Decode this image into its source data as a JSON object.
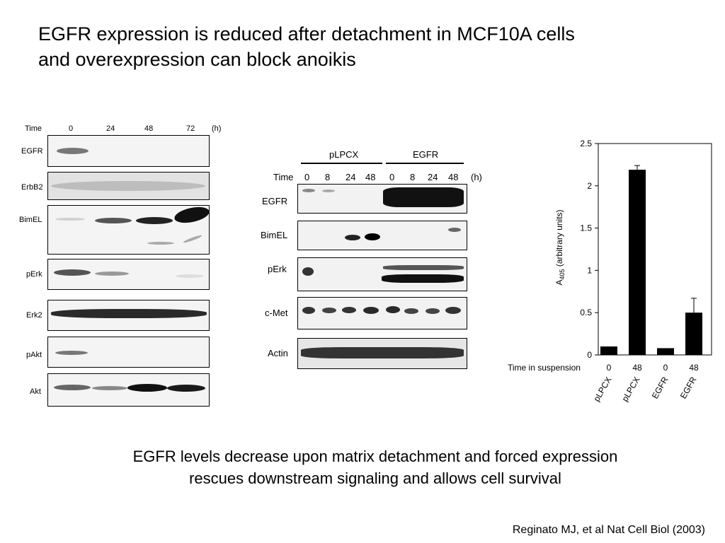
{
  "slide": {
    "title_line1": "EGFR expression is reduced after detachment in MCF10A cells",
    "title_line2": "and overexpression can block anoikis",
    "caption_line1": "EGFR levels decrease upon matrix detachment and forced expression",
    "caption_line2": "rescues downstream signaling and allows cell survival",
    "citation": "Reginato MJ, et al Nat Cell Biol (2003)"
  },
  "blot_a": {
    "time_label": "Time",
    "unit": "(h)",
    "timepoints": [
      "0",
      "24",
      "48",
      "72"
    ],
    "rows": [
      "EGFR",
      "ErbB2",
      "BimEL",
      "pErk",
      "Erk2",
      "pAkt",
      "Akt"
    ]
  },
  "blot_b": {
    "group1": "pLPCX",
    "group2": "EGFR",
    "time_label": "Time",
    "unit": "(h)",
    "timepoints": [
      "0",
      "8",
      "24",
      "48",
      "0",
      "8",
      "24",
      "48"
    ],
    "rows": [
      "EGFR",
      "BimEL",
      "pErk",
      "c-Met",
      "Actin"
    ]
  },
  "chart_data": {
    "type": "bar",
    "ylabel": "A405 (arbitrary units)",
    "ylabel_main": "A",
    "ylabel_sub": "405",
    "ylabel_rest": " (arbitrary units)",
    "xlabel": "Time in suspension",
    "ylim": [
      0,
      2.5
    ],
    "yticks": [
      "0",
      "0.5",
      "1",
      "1.5",
      "2",
      "2.5"
    ],
    "categories": [
      "0",
      "48",
      "0",
      "48"
    ],
    "groups": [
      "pLPCX",
      "pLPCX",
      "EGFR",
      "EGFR"
    ],
    "values": [
      0.1,
      2.19,
      0.08,
      0.5
    ],
    "errors": [
      0,
      0.05,
      0,
      0.17
    ],
    "bar_color": "#000000"
  }
}
